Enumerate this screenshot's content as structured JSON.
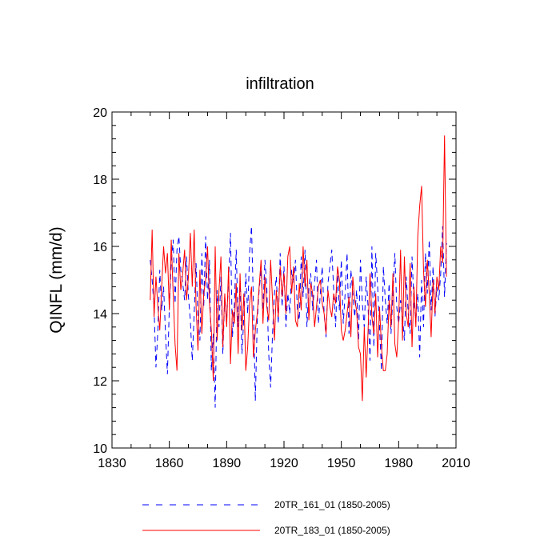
{
  "chart_data": {
    "type": "line",
    "title": "infiltration",
    "xlabel": "",
    "ylabel": "QINFL  (mm/d)",
    "xlim": [
      1830,
      2010
    ],
    "ylim": [
      10,
      20
    ],
    "xticks": [
      1830,
      1860,
      1890,
      1920,
      1950,
      1980,
      2010
    ],
    "yticks": [
      10,
      12,
      14,
      16,
      18,
      20
    ],
    "grid": false,
    "legend_position": "bottom",
    "series": [
      {
        "name": "20TR_161_01 (1850-2005)",
        "color": "#0000ff",
        "dash": "dashed",
        "x_start": 1850,
        "x_step": 1,
        "values": [
          15.6,
          15.0,
          14.2,
          12.4,
          13.5,
          15.3,
          14.1,
          14.8,
          13.4,
          12.2,
          14.2,
          15.5,
          16.2,
          14.3,
          15.9,
          16.3,
          15.3,
          14.9,
          14.4,
          15.7,
          14.5,
          13.8,
          12.6,
          14.0,
          15.5,
          13.8,
          13.2,
          15.8,
          14.2,
          16.3,
          14.4,
          15.6,
          12.3,
          13.4,
          11.2,
          14.7,
          13.6,
          15.1,
          12.8,
          14.5,
          13.8,
          15.0,
          16.4,
          13.3,
          14.2,
          15.9,
          13.6,
          14.9,
          12.8,
          13.9,
          15.2,
          14.0,
          15.8,
          16.6,
          14.3,
          11.4,
          13.8,
          14.7,
          15.3,
          14.1,
          15.6,
          14.8,
          12.8,
          11.8,
          13.4,
          14.6,
          15.1,
          13.7,
          15.8,
          14.2,
          15.4,
          13.6,
          14.6,
          14.0,
          15.3,
          14.9,
          15.6,
          14.1,
          13.8,
          15.7,
          14.5,
          15.9,
          13.6,
          14.8,
          15.2,
          14.1,
          14.9,
          15.6,
          13.7,
          14.6,
          15.4,
          14.0,
          13.3,
          14.9,
          15.4,
          15.9,
          14.7,
          13.6,
          15.3,
          14.1,
          15.6,
          13.7,
          14.6,
          15.8,
          13.4,
          15.3,
          14.6,
          13.9,
          14.7,
          13.2,
          15.6,
          14.3,
          13.6,
          15.1,
          14.2,
          12.6,
          16.0,
          13.0,
          15.8,
          14.8,
          13.6,
          12.3,
          15.4,
          14.4,
          13.7,
          14.9,
          13.4,
          14.6,
          15.8,
          14.2,
          13.7,
          14.4,
          13.9,
          13.2,
          15.1,
          14.0,
          13.4,
          15.7,
          14.3,
          13.8,
          14.6,
          12.7,
          15.0,
          13.6,
          15.8,
          14.6,
          16.2,
          14.1,
          15.4,
          13.9,
          14.8,
          14.4,
          15.2,
          16.6,
          14.5,
          16.1
        ]
      },
      {
        "name": "20TR_183_01 (1850-2005)",
        "color": "#ff0000",
        "dash": "solid",
        "x_start": 1850,
        "x_step": 1,
        "values": [
          14.4,
          16.5,
          13.9,
          15.1,
          14.2,
          13.5,
          14.8,
          16.0,
          15.2,
          15.8,
          14.1,
          16.2,
          14.6,
          13.1,
          12.3,
          15.8,
          14.7,
          15.2,
          15.9,
          14.4,
          15.1,
          16.4,
          14.8,
          16.5,
          14.2,
          12.9,
          15.3,
          13.4,
          14.6,
          15.0,
          16.0,
          14.3,
          13.5,
          12.0,
          16.0,
          13.2,
          14.7,
          15.7,
          13.0,
          14.6,
          13.6,
          15.4,
          12.5,
          14.1,
          13.7,
          14.9,
          12.8,
          15.2,
          13.5,
          14.6,
          12.3,
          13.0,
          14.3,
          14.8,
          12.7,
          13.5,
          14.0,
          14.8,
          15.6,
          13.7,
          15.1,
          14.2,
          13.8,
          15.6,
          14.4,
          13.2,
          14.7,
          13.9,
          15.4,
          14.5,
          15.2,
          14.0,
          15.7,
          16.0,
          14.6,
          15.4,
          13.8,
          13.6,
          14.9,
          14.1,
          16.0,
          14.8,
          15.6,
          13.8,
          14.9,
          14.6,
          13.6,
          14.2,
          14.8,
          15.0,
          14.3,
          14.0,
          13.4,
          14.7,
          14.2,
          13.9,
          14.6,
          14.3,
          15.4,
          15.0,
          13.5,
          13.2,
          13.5,
          14.0,
          14.5,
          13.3,
          15.1,
          14.4,
          14.1,
          13.0,
          12.8,
          11.4,
          13.6,
          12.1,
          13.5,
          15.2,
          13.9,
          13.4,
          14.6,
          12.7,
          14.2,
          13.0,
          12.3,
          12.3,
          12.8,
          14.4,
          13.6,
          15.2,
          13.1,
          12.7,
          13.8,
          15.9,
          13.2,
          15.7,
          14.0,
          13.6,
          15.5,
          13.0,
          14.8,
          13.6,
          16.3,
          17.2,
          17.8,
          15.3,
          14.2,
          15.6,
          14.6,
          13.3,
          15.0,
          14.0,
          15.1,
          14.7,
          16.0,
          15.5,
          19.3,
          15.1
        ]
      }
    ]
  }
}
